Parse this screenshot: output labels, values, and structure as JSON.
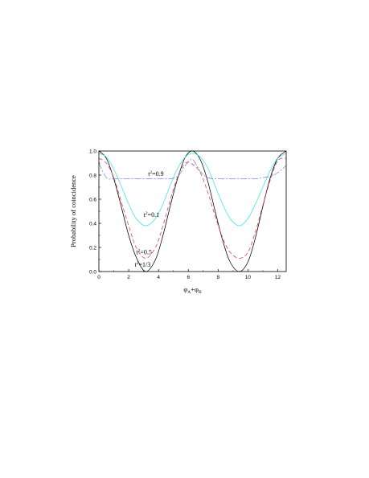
{
  "chart_data": {
    "type": "line",
    "xlabel_main": "φ",
    "xlabel_sub_a": "A",
    "xlabel_join": "+φ",
    "xlabel_sub_b": "B",
    "ylabel": "Probability of coincidence",
    "xlim": [
      0,
      12.566
    ],
    "ylim": [
      0,
      1.0
    ],
    "x_ticks": [
      0,
      2,
      4,
      6,
      8,
      10,
      12
    ],
    "y_ticks": [
      0.0,
      0.2,
      0.4,
      0.6,
      0.8,
      1.0
    ],
    "x_tick_labels": [
      "0",
      "2",
      "4",
      "6",
      "8",
      "10",
      "12"
    ],
    "y_tick_labels": [
      "0.0",
      "0.2",
      "0.4",
      "0.6",
      "0.8",
      "1.0"
    ],
    "grid": false,
    "series": [
      {
        "key": "t2_1_3",
        "color": "#000000",
        "dash": "none",
        "x": [
          0,
          0.5,
          1.0,
          1.5,
          2.0,
          2.5,
          3.14,
          3.8,
          4.3,
          4.8,
          5.3,
          5.8,
          6.28,
          6.8,
          7.3,
          7.8,
          8.3,
          8.8,
          9.42,
          10.0,
          10.5,
          11.0,
          11.5,
          12.0,
          12.566
        ],
        "y": [
          1.0,
          0.94,
          0.77,
          0.54,
          0.3,
          0.12,
          0.0,
          0.1,
          0.3,
          0.55,
          0.78,
          0.95,
          1.0,
          0.93,
          0.75,
          0.5,
          0.26,
          0.08,
          0.0,
          0.08,
          0.28,
          0.54,
          0.78,
          0.94,
          1.0
        ]
      },
      {
        "key": "t2_0_5",
        "color": "#e0394a",
        "dash": "5,3",
        "x": [
          0,
          0.5,
          1.0,
          1.5,
          2.0,
          2.5,
          3.14,
          3.8,
          4.3,
          4.8,
          5.3,
          5.8,
          6.28,
          6.8,
          7.3,
          7.8,
          8.3,
          8.8,
          9.42,
          10.0,
          10.5,
          11.0,
          11.5,
          12.0,
          12.566
        ],
        "y": [
          0.94,
          0.9,
          0.78,
          0.58,
          0.38,
          0.2,
          0.11,
          0.2,
          0.38,
          0.6,
          0.79,
          0.9,
          0.89,
          0.82,
          0.66,
          0.46,
          0.28,
          0.16,
          0.11,
          0.16,
          0.33,
          0.55,
          0.76,
          0.92,
          0.94
        ]
      },
      {
        "key": "t2_0_1",
        "color": "#33e6ee",
        "dash": "none",
        "x": [
          0,
          0.5,
          1.0,
          1.5,
          2.0,
          2.5,
          3.14,
          3.8,
          4.3,
          4.8,
          5.3,
          5.8,
          6.28,
          6.8,
          7.3,
          7.8,
          8.3,
          8.8,
          9.42,
          10.0,
          10.5,
          11.0,
          11.5,
          12.0,
          12.566
        ],
        "y": [
          0.98,
          0.95,
          0.85,
          0.71,
          0.56,
          0.44,
          0.38,
          0.44,
          0.56,
          0.72,
          0.86,
          0.95,
          0.98,
          0.95,
          0.86,
          0.71,
          0.56,
          0.44,
          0.38,
          0.44,
          0.56,
          0.7,
          0.84,
          0.94,
          0.98
        ]
      },
      {
        "key": "t2_0_9",
        "color": "#7b84e0",
        "dash": "8,2,2,2",
        "x": [
          0,
          0.5,
          1.0,
          1.5,
          2.0,
          2.5,
          3.14,
          3.8,
          4.3,
          4.8,
          5.3,
          5.8,
          6.28,
          6.8,
          7.3,
          7.8,
          8.3,
          8.8,
          9.42,
          10.0,
          10.5,
          11.0,
          11.5,
          12.0,
          12.566
        ],
        "y": [
          0.9,
          0.78,
          0.77,
          0.77,
          0.77,
          0.77,
          0.77,
          0.77,
          0.77,
          0.77,
          0.79,
          0.88,
          0.93,
          0.83,
          0.78,
          0.77,
          0.77,
          0.77,
          0.77,
          0.77,
          0.77,
          0.78,
          0.79,
          0.82,
          0.88
        ]
      }
    ],
    "annotations": [
      {
        "key": "a09",
        "base": "t",
        "sup": "2",
        "rest": "=0.9",
        "x": 3.3,
        "y": 0.795
      },
      {
        "key": "a01",
        "base": "t",
        "sup": "2",
        "rest": "=0.1",
        "x": 3.0,
        "y": 0.455
      },
      {
        "key": "a05",
        "base": "t",
        "sup": "2",
        "rest": "=0.5",
        "x": 2.5,
        "y": 0.145
      },
      {
        "key": "a13",
        "base": "t",
        "sup": "2",
        "rest": "=1/3",
        "x": 2.4,
        "y": 0.04
      }
    ]
  }
}
